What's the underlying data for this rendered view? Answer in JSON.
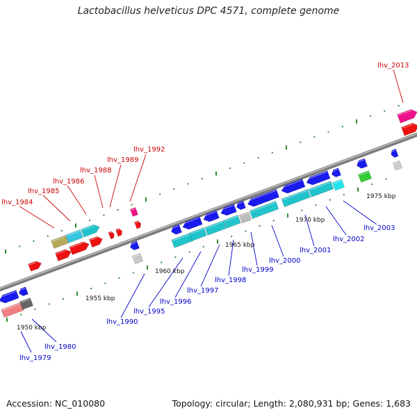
{
  "title": "Lactobacillus helveticus DPC 4571, complete genome",
  "footer": {
    "accession": "Accession: NC_010080",
    "summary": "Topology: circular; Length: 2,080,931 bp; Genes: 1,683"
  },
  "colors": {
    "forward_label": "#cc0000",
    "reverse_label": "#0000cc",
    "backbone": "#8a8a8a",
    "tick": "#2e8b2e",
    "leader": "#2e8b2e"
  },
  "kbp_ticks": [
    "1950 kbp",
    "1955 kbp",
    "1960 kbp",
    "1965 kbp",
    "1970 kbp",
    "1975 kbp"
  ],
  "gene_labels": [
    {
      "name": "lhv_1984",
      "strand": "forward"
    },
    {
      "name": "lhv_1985",
      "strand": "forward"
    },
    {
      "name": "lhv_1986",
      "strand": "forward"
    },
    {
      "name": "lhv_1988",
      "strand": "forward"
    },
    {
      "name": "lhv_1989",
      "strand": "forward"
    },
    {
      "name": "lhv_1992",
      "strand": "forward"
    },
    {
      "name": "lhv_2013",
      "strand": "forward"
    },
    {
      "name": "lhv_1979",
      "strand": "reverse"
    },
    {
      "name": "lhv_1980",
      "strand": "reverse"
    },
    {
      "name": "lhv_1990",
      "strand": "reverse"
    },
    {
      "name": "lhv_1995",
      "strand": "reverse"
    },
    {
      "name": "lhv_1996",
      "strand": "reverse"
    },
    {
      "name": "lhv_1997",
      "strand": "reverse"
    },
    {
      "name": "lhv_1998",
      "strand": "reverse"
    },
    {
      "name": "lhv_1999",
      "strand": "reverse"
    },
    {
      "name": "lhv_2000",
      "strand": "reverse"
    },
    {
      "name": "lhv_2001",
      "strand": "reverse"
    },
    {
      "name": "lhv_2002",
      "strand": "reverse"
    },
    {
      "name": "lhv_2003",
      "strand": "reverse"
    }
  ]
}
